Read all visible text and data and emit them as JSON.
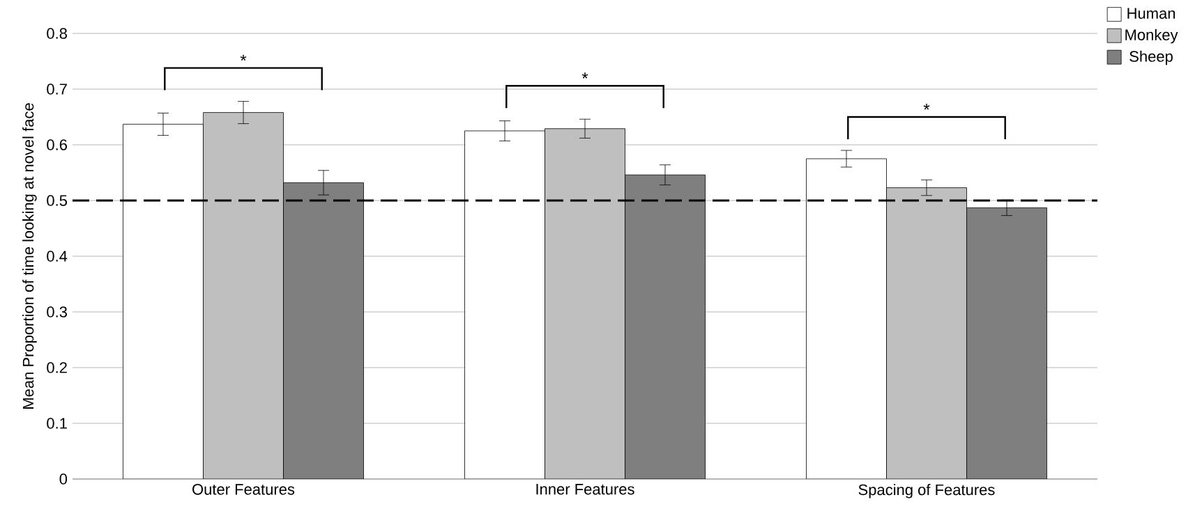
{
  "chart_data": {
    "type": "bar",
    "ylabel": "Mean Proportion of time looking at novel face",
    "categories": [
      "Outer Features",
      "Inner Features",
      "Spacing of Features"
    ],
    "series": [
      {
        "name": "Human",
        "color": "#ffffff",
        "values": [
          0.637,
          0.625,
          0.575
        ],
        "errors": [
          0.02,
          0.018,
          0.015
        ]
      },
      {
        "name": "Monkey",
        "color": "#bfbfbf",
        "values": [
          0.658,
          0.629,
          0.523
        ],
        "errors": [
          0.02,
          0.017,
          0.014
        ]
      },
      {
        "name": "Sheep",
        "color": "#7f7f7f",
        "values": [
          0.532,
          0.546,
          0.487
        ],
        "errors": [
          0.022,
          0.018,
          0.014
        ]
      }
    ],
    "ylim": [
      0,
      0.8
    ],
    "yticks": [
      0,
      0.1,
      0.2,
      0.3,
      0.4,
      0.5,
      0.6,
      0.7,
      0.8
    ],
    "grid": "y",
    "legend": "top right",
    "ref_lines": [
      {
        "axis": "y",
        "value": 0.5,
        "line_style": "dashed",
        "color": "#000000"
      }
    ],
    "annotations": [
      "*",
      "*",
      "*"
    ]
  }
}
